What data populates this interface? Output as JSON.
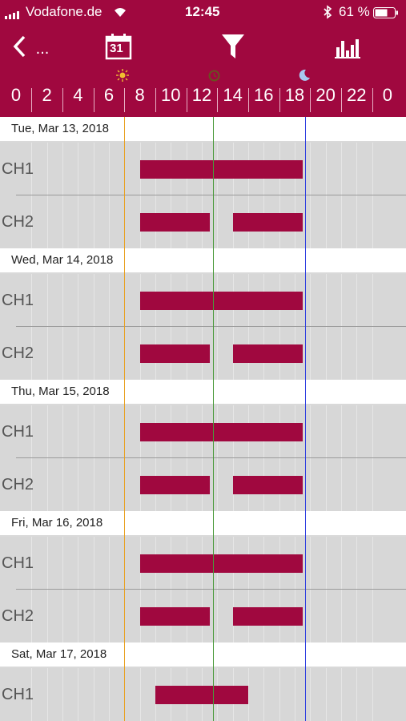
{
  "status_bar": {
    "carrier": "Vodafone.de",
    "time": "12:45",
    "battery": "61 %"
  },
  "nav": {
    "back_label": "...",
    "calendar_day": "31"
  },
  "timeline": {
    "ticks": [
      "0",
      "2",
      "4",
      "6",
      "8",
      "10",
      "12",
      "14",
      "16",
      "18",
      "20",
      "22",
      "0"
    ]
  },
  "days": [
    {
      "date": "Tue, Mar 13, 2018",
      "channels": [
        {
          "name": "CH1",
          "segments": [
            [
              8.0,
              18.5
            ]
          ]
        },
        {
          "name": "CH2",
          "segments": [
            [
              8.0,
              12.5
            ],
            [
              14.0,
              18.5
            ]
          ]
        }
      ]
    },
    {
      "date": "Wed, Mar 14, 2018",
      "channels": [
        {
          "name": "CH1",
          "segments": [
            [
              8.0,
              18.5
            ]
          ]
        },
        {
          "name": "CH2",
          "segments": [
            [
              8.0,
              12.5
            ],
            [
              14.0,
              18.5
            ]
          ]
        }
      ]
    },
    {
      "date": "Thu, Mar 15, 2018",
      "channels": [
        {
          "name": "CH1",
          "segments": [
            [
              8.0,
              18.5
            ]
          ]
        },
        {
          "name": "CH2",
          "segments": [
            [
              8.0,
              12.5
            ],
            [
              14.0,
              18.5
            ]
          ]
        }
      ]
    },
    {
      "date": "Fri, Mar 16, 2018",
      "channels": [
        {
          "name": "CH1",
          "segments": [
            [
              8.0,
              18.5
            ]
          ]
        },
        {
          "name": "CH2",
          "segments": [
            [
              8.0,
              12.5
            ],
            [
              14.0,
              18.5
            ]
          ]
        }
      ]
    },
    {
      "date": "Sat, Mar 17, 2018",
      "channels": [
        {
          "name": "CH1",
          "segments": [
            [
              9.0,
              15.0
            ]
          ]
        }
      ]
    }
  ],
  "markers": {
    "sunrise": 7.0,
    "now": 12.75,
    "sunset": 18.7
  },
  "colors": {
    "accent": "#a0083f",
    "sunrise": "#e8a020",
    "now": "#4a9a3a",
    "sunset": "#3040e0"
  }
}
